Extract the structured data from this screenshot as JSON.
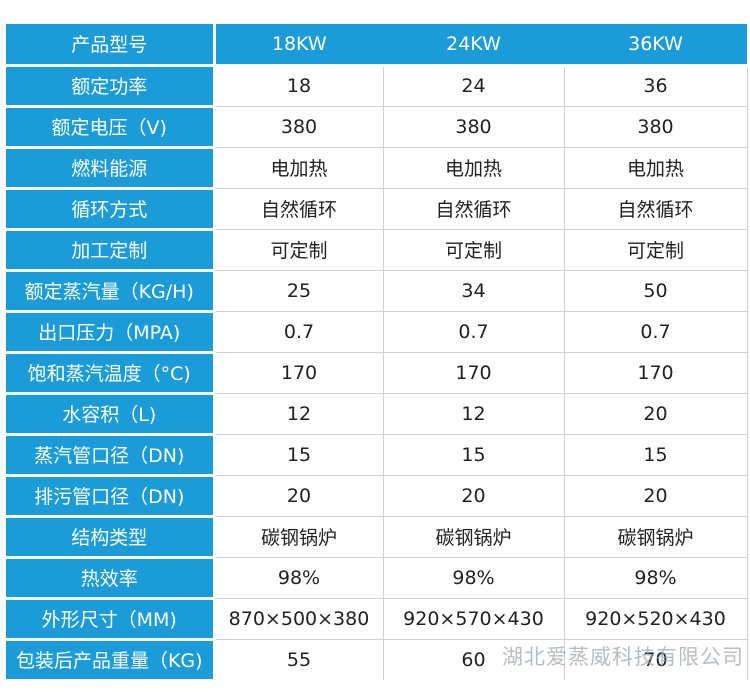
{
  "header": [
    "产品型号",
    "18KW",
    "24KW",
    "36KW"
  ],
  "rows": [
    [
      "额定功率",
      "18",
      "24",
      "36"
    ],
    [
      "额定电压（V)",
      "380",
      "380",
      "380"
    ],
    [
      "燃料能源",
      "电加热",
      "电加热",
      "电加热"
    ],
    [
      "循环方式",
      "自然循环",
      "自然循环",
      "自然循环"
    ],
    [
      "加工定制",
      "可定制",
      "可定制",
      "可定制"
    ],
    [
      "额定蒸汽量（KG/H)",
      "25",
      "34",
      "50"
    ],
    [
      "出口压力（MPA)",
      "0.7",
      "0.7",
      "0.7"
    ],
    [
      "饱和蒸汽温度（°C)",
      "170",
      "170",
      "170"
    ],
    [
      "水容积（L)",
      "12",
      "12",
      "20"
    ],
    [
      "蒸汽管口径（DN)",
      "15",
      "15",
      "15"
    ],
    [
      "排污管口径（DN)",
      "20",
      "20",
      "20"
    ],
    [
      "结构类型",
      "碳钢锅炉",
      "碳钢锅炉",
      "碳钢锅炉"
    ],
    [
      "热效率",
      "98%",
      "98%",
      "98%"
    ],
    [
      "外形尺寸（MM)",
      "870×500×380",
      "920×570×430",
      "920×520×430"
    ],
    [
      "包装后产品重量（KG)",
      "55",
      "60",
      "70"
    ]
  ],
  "watermark": "湖北爱蒸威科技有限公司",
  "colors": {
    "header_bg": "#1b9bd8",
    "header_text": "#ffffff",
    "cell_text": "#222222"
  }
}
